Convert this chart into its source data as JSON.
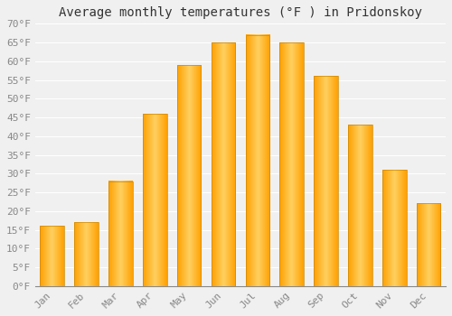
{
  "title": "Average monthly temperatures (°F ) in Pridonskoy",
  "months": [
    "Jan",
    "Feb",
    "Mar",
    "Apr",
    "May",
    "Jun",
    "Jul",
    "Aug",
    "Sep",
    "Oct",
    "Nov",
    "Dec"
  ],
  "values": [
    16,
    17,
    28,
    46,
    59,
    65,
    67,
    65,
    56,
    43,
    31,
    22
  ],
  "bar_color_center": "#FFD060",
  "bar_color_edge": "#FFA000",
  "ylim": [
    0,
    70
  ],
  "yticks": [
    0,
    5,
    10,
    15,
    20,
    25,
    30,
    35,
    40,
    45,
    50,
    55,
    60,
    65,
    70
  ],
  "ytick_labels": [
    "0°F",
    "5°F",
    "10°F",
    "15°F",
    "20°F",
    "25°F",
    "30°F",
    "35°F",
    "40°F",
    "45°F",
    "50°F",
    "55°F",
    "60°F",
    "65°F",
    "70°F"
  ],
  "background_color": "#F0F0F0",
  "grid_color": "#FFFFFF",
  "title_fontsize": 10,
  "tick_fontsize": 8,
  "font_family": "monospace",
  "bar_width": 0.7
}
